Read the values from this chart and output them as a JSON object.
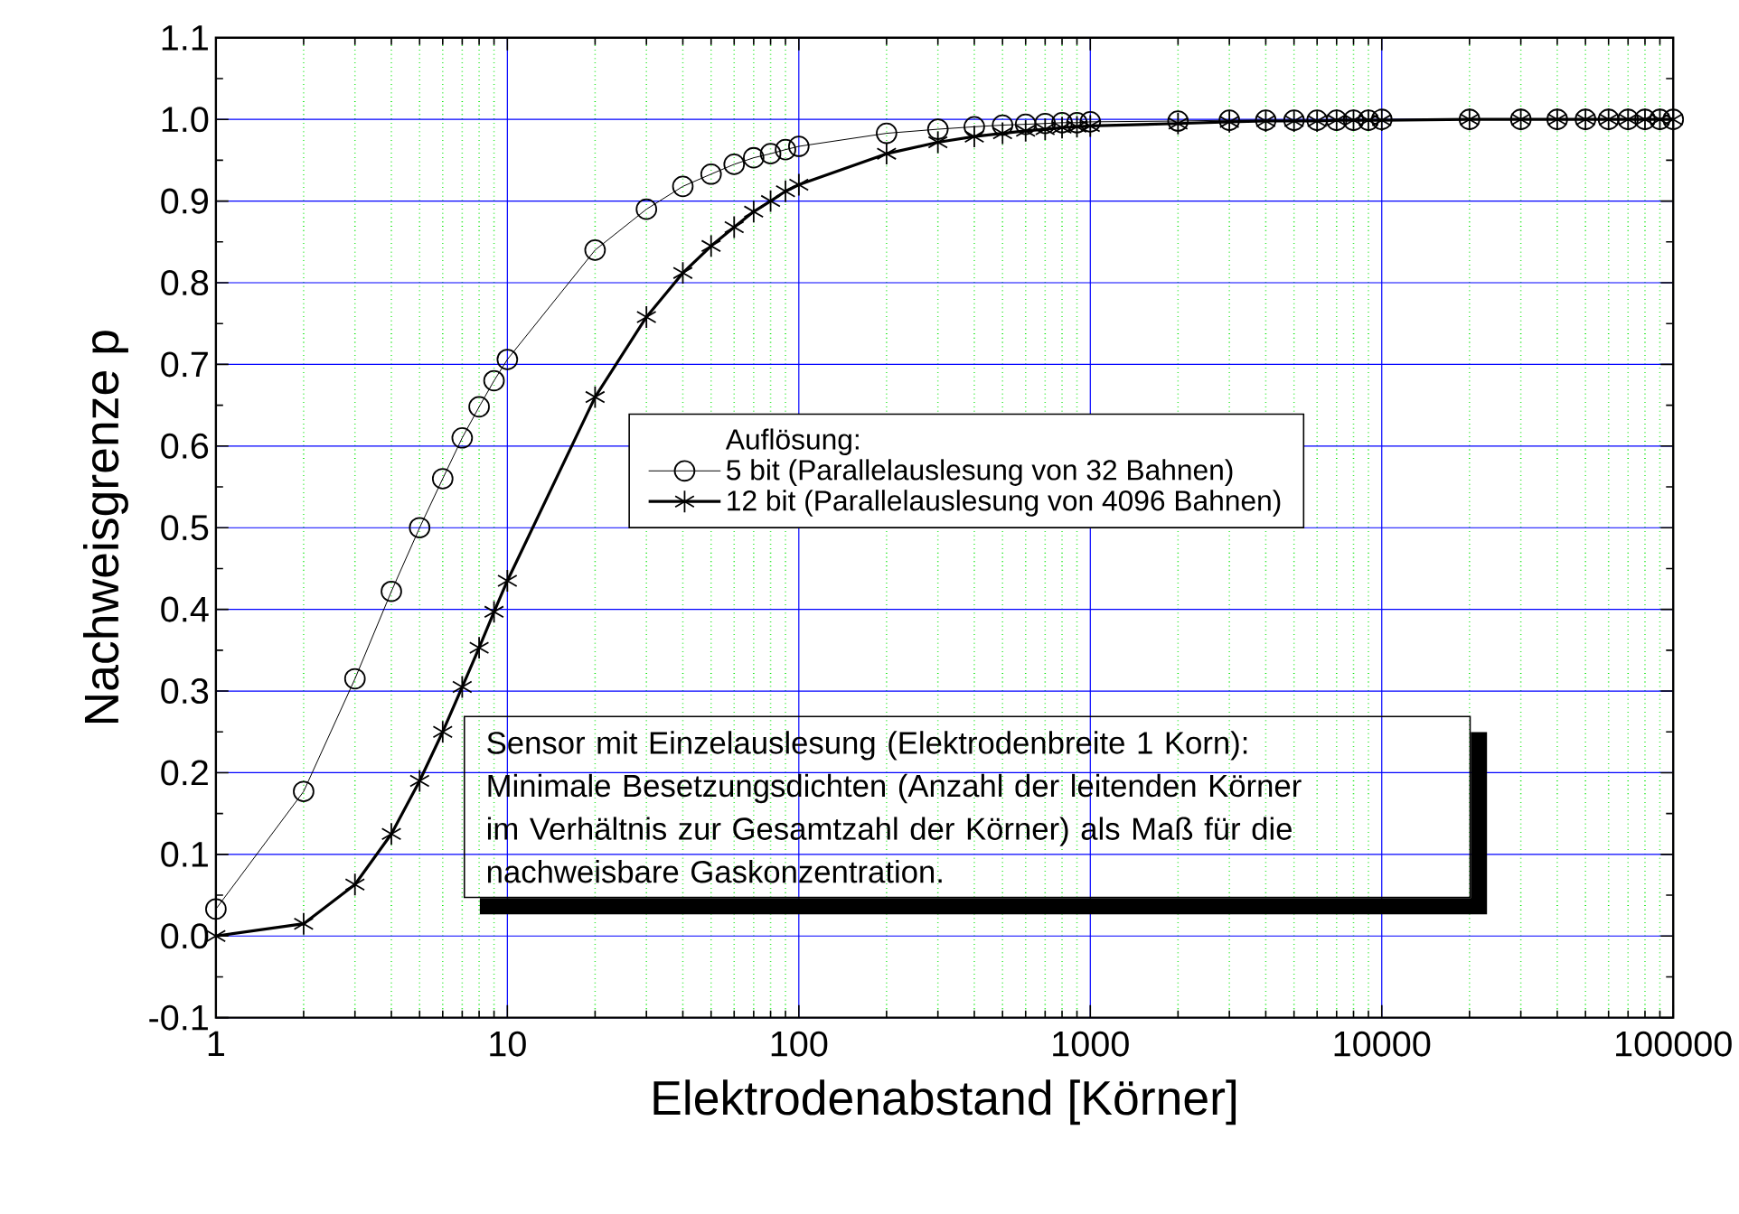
{
  "chart_data": {
    "type": "line",
    "xlabel": "Elektrodenabstand [Körner]",
    "ylabel": "Nachweisgrenze p",
    "legend_title": "Auflösung:",
    "x": [
      1,
      2,
      3,
      4,
      5,
      6,
      7,
      8,
      9,
      10,
      20,
      30,
      40,
      50,
      60,
      70,
      80,
      90,
      100,
      200,
      300,
      400,
      500,
      600,
      700,
      800,
      900,
      1000,
      2000,
      3000,
      4000,
      5000,
      6000,
      7000,
      8000,
      9000,
      10000,
      20000,
      30000,
      40000,
      50000,
      60000,
      70000,
      80000,
      90000,
      100000
    ],
    "series": [
      {
        "name": "5 bit (Parallelauslesung von 32 Bahnen)",
        "color": "#000000",
        "marker": "circle",
        "values": [
          0.033,
          0.177,
          0.315,
          0.422,
          0.5,
          0.56,
          0.61,
          0.648,
          0.68,
          0.706,
          0.84,
          0.89,
          0.918,
          0.933,
          0.945,
          0.953,
          0.958,
          0.963,
          0.967,
          0.983,
          0.988,
          0.991,
          0.993,
          0.994,
          0.995,
          0.996,
          0.996,
          0.997,
          0.998,
          0.999,
          0.999,
          0.999,
          0.999,
          0.999,
          0.999,
          0.999,
          1.0,
          1.0,
          1.0,
          1.0,
          1.0,
          1.0,
          1.0,
          1.0,
          1.0,
          1.0
        ]
      },
      {
        "name": "12 bit (Parallelauslesung von 4096 Bahnen)",
        "color": "#000000",
        "marker": "cross",
        "values": [
          0.0,
          0.015,
          0.063,
          0.125,
          0.19,
          0.25,
          0.305,
          0.353,
          0.397,
          0.435,
          0.66,
          0.758,
          0.812,
          0.845,
          0.868,
          0.887,
          0.9,
          0.912,
          0.92,
          0.958,
          0.972,
          0.979,
          0.983,
          0.986,
          0.988,
          0.99,
          0.991,
          0.992,
          0.995,
          0.997,
          0.998,
          0.998,
          0.998,
          0.999,
          0.999,
          0.999,
          0.999,
          1.0,
          1.0,
          1.0,
          1.0,
          1.0,
          1.0,
          1.0,
          1.0,
          1.0
        ]
      }
    ],
    "xlim": [
      1,
      100000
    ],
    "xticks": [
      1,
      {
        "value": 2,
        "label": null
      },
      {
        "value": 3,
        "label": null
      },
      {
        "value": 4,
        "label": null
      },
      {
        "value": 5,
        "label": null
      },
      {
        "value": 6,
        "label": null
      },
      {
        "value": 7,
        "label": null
      },
      {
        "value": 8,
        "label": null
      },
      {
        "value": 9,
        "label": null
      },
      10,
      {
        "value": 20,
        "label": null
      },
      {
        "value": 30,
        "label": null
      },
      {
        "value": 40,
        "label": null
      },
      {
        "value": 50,
        "label": null
      },
      {
        "value": 60,
        "label": null
      },
      {
        "value": 70,
        "label": null
      },
      {
        "value": 80,
        "label": null
      },
      {
        "value": 90,
        "label": null
      },
      100,
      {
        "value": 200,
        "label": null
      },
      {
        "value": 300,
        "label": null
      },
      {
        "value": 400,
        "label": null
      },
      {
        "value": 500,
        "label": null
      },
      {
        "value": 600,
        "label": null
      },
      {
        "value": 700,
        "label": null
      },
      {
        "value": 800,
        "label": null
      },
      {
        "value": 900,
        "label": null
      },
      1000,
      {
        "value": 2000,
        "label": null
      },
      {
        "value": 3000,
        "label": null
      },
      {
        "value": 4000,
        "label": null
      },
      {
        "value": 5000,
        "label": null
      },
      {
        "value": 6000,
        "label": null
      },
      {
        "value": 7000,
        "label": null
      },
      {
        "value": 8000,
        "label": null
      },
      {
        "value": 9000,
        "label": null
      },
      10000,
      {
        "value": 20000,
        "label": null
      },
      {
        "value": 30000,
        "label": null
      },
      {
        "value": 40000,
        "label": null
      },
      {
        "value": 50000,
        "label": null
      },
      {
        "value": 60000,
        "label": null
      },
      {
        "value": 70000,
        "label": null
      },
      {
        "value": 80000,
        "label": null
      },
      {
        "value": 90000,
        "label": null
      },
      100000
    ],
    "ylim": [
      -0.1,
      1.1
    ],
    "yticks": [
      -0.1,
      {
        "value": 0,
        "label": "0.0"
      },
      0.1,
      0.2,
      0.3,
      0.4,
      0.5,
      0.6,
      0.7,
      0.8,
      0.9,
      {
        "value": 1,
        "label": "1.0"
      },
      1.1
    ],
    "log": "x",
    "grid": true,
    "legend": "center",
    "annotations": [
      "Sensor mit Einzelauslesung (Elektrodenbreite 1 Korn):",
      "Minimale Besetzungsdichten (Anzahl der leitenden Körner im Verhältnis zur Gesamtzahl der Körner) als Maß für die nachweisbare Gaskonzentration."
    ]
  }
}
